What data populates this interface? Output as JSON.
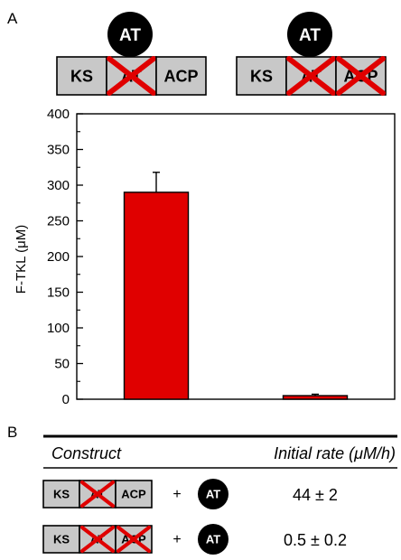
{
  "panel_a": {
    "label": "A",
    "constructs": [
      {
        "free_domain": "AT",
        "domains": [
          {
            "label": "KS",
            "crossed": false
          },
          {
            "label": "AT",
            "crossed": true
          },
          {
            "label": "ACP",
            "crossed": false
          }
        ]
      },
      {
        "free_domain": "AT",
        "domains": [
          {
            "label": "KS",
            "crossed": false
          },
          {
            "label": "AT",
            "crossed": true
          },
          {
            "label": "ACP",
            "crossed": true
          }
        ]
      }
    ]
  },
  "chart_data": {
    "type": "bar",
    "categories": [
      "",
      ""
    ],
    "values": [
      290,
      5
    ],
    "errors": [
      28,
      2
    ],
    "ylabel": "F-TKL (μM)",
    "ylim": [
      0,
      400
    ],
    "yticks": [
      0,
      50,
      100,
      150,
      200,
      250,
      300,
      350,
      400
    ],
    "bar_color": "#e00000"
  },
  "panel_b": {
    "label": "B",
    "table": {
      "headers": [
        "Construct",
        "Initial rate (μM/h)"
      ],
      "rows": [
        {
          "domains": [
            {
              "label": "KS",
              "crossed": false
            },
            {
              "label": "AT",
              "crossed": true
            },
            {
              "label": "ACP",
              "crossed": false
            }
          ],
          "plus": "+",
          "free_domain": "AT",
          "rate": "44 ± 2"
        },
        {
          "domains": [
            {
              "label": "KS",
              "crossed": false
            },
            {
              "label": "AT",
              "crossed": true
            },
            {
              "label": "ACP",
              "crossed": true
            }
          ],
          "plus": "+",
          "free_domain": "AT",
          "rate": "0.5 ± 0.2"
        }
      ]
    }
  }
}
